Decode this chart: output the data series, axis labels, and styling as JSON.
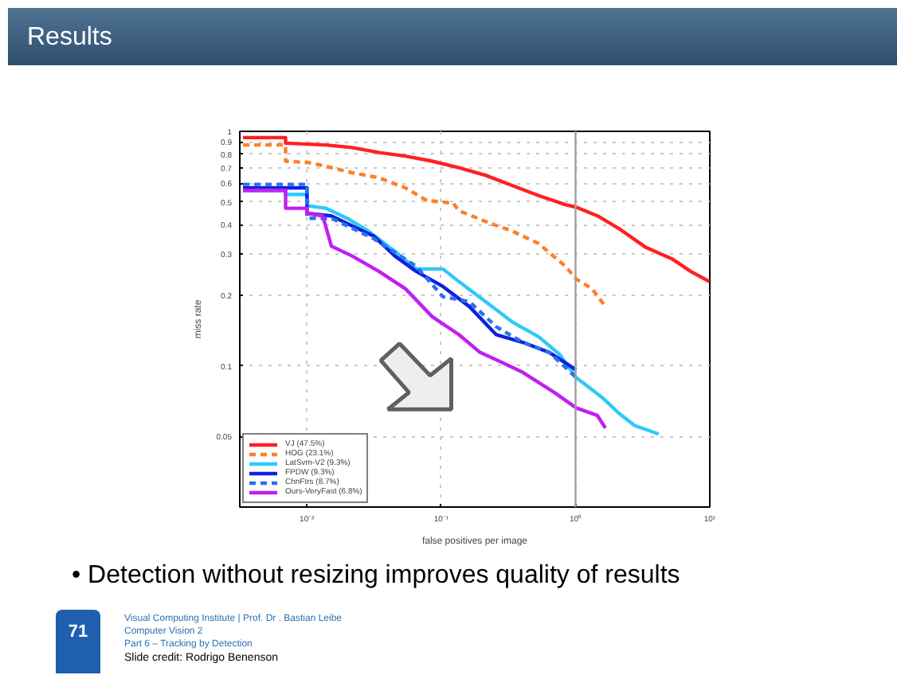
{
  "chart_data": {
    "type": "line",
    "title": "Results",
    "xlabel": "false positives per image",
    "ylabel": "miss rate",
    "annotations": [
      "• Detection without resizing improves quality of results",
      "71",
      "Visual Computing Institute | Prof. Dr . Bastian Leibe",
      "Computer Vision 2",
      "Part 6 – Tracking by Detection",
      "Slide credit: Rodrigo Benenson"
    ],
    "log": "xy",
    "grid": true,
    "legend": "bottom left",
    "xlim": [
      0.00316,
      10
    ],
    "ylim": [
      0.025,
      1
    ],
    "xticks": [
      {
        "value": 0.01,
        "label": "10⁻²"
      },
      {
        "value": 0.1,
        "label": "10⁻¹"
      },
      {
        "value": 1,
        "label": "10⁰"
      },
      {
        "value": 10,
        "label": "10¹"
      }
    ],
    "yticks": [
      0.05,
      0.1,
      0.2,
      0.3,
      0.4,
      0.5,
      0.6,
      0.7,
      0.8,
      0.9,
      1
    ],
    "ref_lines": [
      {
        "axis": "x",
        "value": 1,
        "color": "#a0a0a0"
      }
    ],
    "series": [
      {
        "name": "VJ (47.5%)",
        "color": "#ff2020",
        "line_style": "solid",
        "x": [
          0.00334,
          0.00693,
          0.00693,
          0.0138,
          0.0217,
          0.0343,
          0.0542,
          0.0857,
          0.135,
          0.213,
          0.337,
          0.532,
          0.841,
          1.01,
          1.46,
          2.09,
          3.31,
          5.23,
          7.19,
          9.9
        ],
        "values": [
          0.94,
          0.94,
          0.89,
          0.875,
          0.853,
          0.812,
          0.784,
          0.746,
          0.7,
          0.65,
          0.588,
          0.532,
          0.487,
          0.475,
          0.436,
          0.386,
          0.321,
          0.286,
          0.253,
          0.229
        ]
      },
      {
        "name": "HOG (23.1%)",
        "color": "#ff7f27",
        "line_style": "dashed",
        "x": [
          0.00334,
          0.00693,
          0.00693,
          0.0105,
          0.0152,
          0.0217,
          0.0343,
          0.0542,
          0.0781,
          0.123,
          0.135,
          0.233,
          0.337,
          0.532,
          0.841,
          1.01,
          1.33,
          1.67
        ],
        "values": [
          0.875,
          0.875,
          0.746,
          0.735,
          0.7,
          0.666,
          0.634,
          0.574,
          0.507,
          0.494,
          0.459,
          0.405,
          0.376,
          0.332,
          0.266,
          0.235,
          0.213,
          0.179
        ]
      },
      {
        "name": "LatSvm-V2 (9.3%)",
        "color": "#30c8f8",
        "line_style": "solid",
        "x": [
          0.00334,
          0.00693,
          0.00693,
          0.01,
          0.01,
          0.0138,
          0.0199,
          0.0286,
          0.0452,
          0.065,
          0.103,
          0.135,
          0.213,
          0.337,
          0.532,
          0.767,
          1.01,
          1.59,
          2.09,
          2.75,
          4.16
        ],
        "values": [
          0.56,
          0.56,
          0.538,
          0.538,
          0.482,
          0.47,
          0.426,
          0.376,
          0.308,
          0.259,
          0.259,
          0.229,
          0.188,
          0.154,
          0.133,
          0.1115,
          0.0892,
          0.0731,
          0.063,
          0.0557,
          0.0512
        ]
      },
      {
        "name": "FPDW (9.3%)",
        "color": "#1020e0",
        "line_style": "solid",
        "x": [
          0.00334,
          0.01,
          0.01,
          0.0152,
          0.0217,
          0.0313,
          0.0452,
          0.065,
          0.103,
          0.162,
          0.256,
          0.405,
          0.64,
          1.01
        ],
        "values": [
          0.574,
          0.574,
          0.447,
          0.436,
          0.395,
          0.358,
          0.294,
          0.253,
          0.218,
          0.179,
          0.136,
          0.126,
          0.114,
          0.0962
        ]
      },
      {
        "name": "ChnFtrs (8.7%)",
        "color": "#2a70f0",
        "line_style": "dashed",
        "x": [
          0.00334,
          0.01,
          0.01,
          0.0152,
          0.0313,
          0.065,
          0.103,
          0.162,
          0.256,
          0.405,
          0.64,
          1.01
        ],
        "values": [
          0.594,
          0.594,
          0.426,
          0.426,
          0.349,
          0.266,
          0.197,
          0.188,
          0.147,
          0.126,
          0.114,
          0.0892
        ]
      },
      {
        "name": "Ours-VeryFast (6.8%)",
        "color": "#c020f0",
        "line_style": "solid",
        "x": [
          0.00334,
          0.00693,
          0.00693,
          0.01,
          0.01,
          0.0131,
          0.0152,
          0.0217,
          0.0343,
          0.0542,
          0.0857,
          0.135,
          0.195,
          0.281,
          0.405,
          0.7,
          1.01,
          1.45,
          1.67
        ],
        "values": [
          0.56,
          0.56,
          0.47,
          0.47,
          0.447,
          0.436,
          0.324,
          0.294,
          0.253,
          0.213,
          0.162,
          0.136,
          0.114,
          0.1036,
          0.0938,
          0.0768,
          0.0662,
          0.0615,
          0.0543
        ]
      }
    ]
  }
}
